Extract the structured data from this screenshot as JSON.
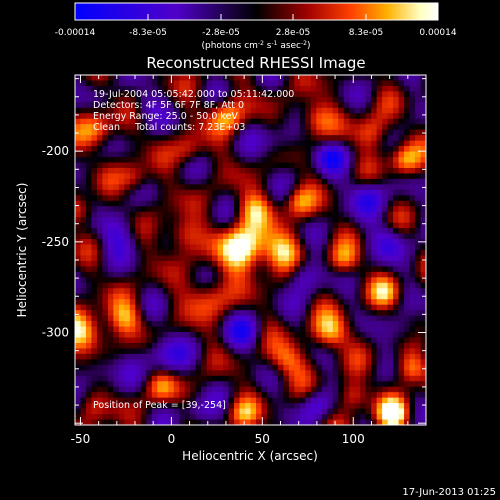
{
  "chart_data": {
    "type": "heatmap",
    "title": "Reconstructed RHESSI Image",
    "xlabel": "Heliocentric X (arcsec)",
    "ylabel": "Heliocentric Y (arcsec)",
    "xlim": [
      -53,
      140
    ],
    "ylim": [
      -351,
      -158
    ],
    "xticks": [
      -50,
      0,
      50,
      100
    ],
    "yticks": [
      -200,
      -250,
      -300
    ],
    "colorbar": {
      "min": -0.00014,
      "max": 0.00014,
      "tick_labels": [
        "-0.00014",
        "-8.3e-05",
        "-2.8e-05",
        "2.8e-05",
        "8.3e-05",
        "0.00014"
      ],
      "units": "(photons cm",
      "units_sup1": "-2",
      "units_mid1": " s",
      "units_sup2": "-1",
      "units_mid2": " asec",
      "units_sup3": "-2",
      "units_end": ")",
      "colormap": [
        "#0000ff",
        "#5000c8",
        "#000000",
        "#a00000",
        "#ff4000",
        "#ffb000",
        "#ffffc0",
        "#ffffff"
      ]
    },
    "annotations": [
      "19-Jul-2004 05:05:42.000 to 05:11:42.000",
      "Detectors: 4F 5F 6F 7F 8F, Att 0",
      "Energy Range: 25.0 - 50.0 keV",
      "Clean     Total counts: 7.23E+03"
    ],
    "peak_label": "Position of Peak = [39,-254]",
    "peak": [
      39,
      -254
    ],
    "grid": false
  },
  "footer_timestamp": "17-Jun-2013 01:25"
}
